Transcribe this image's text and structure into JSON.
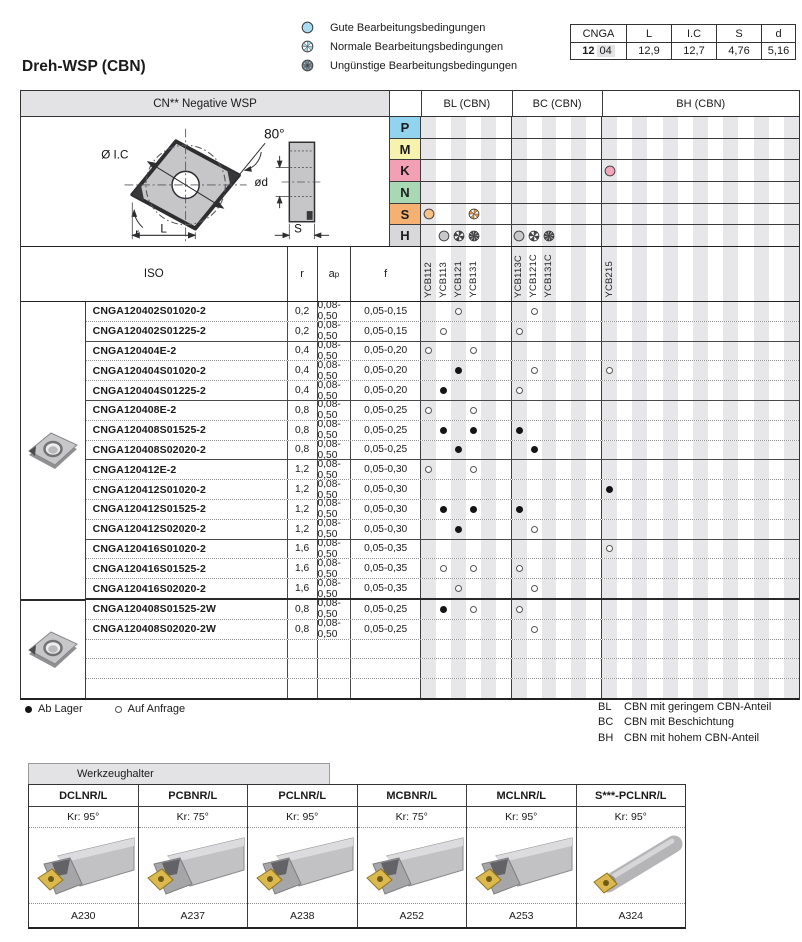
{
  "title": "Dreh-WSP (CBN)",
  "legend": {
    "items": [
      {
        "sym": "gute",
        "color": "#a7dcf2",
        "label": "Gute Bearbeitungsbedingungen"
      },
      {
        "sym": "normale",
        "color": "#9fd3ec",
        "label": "Normale Bearbeitungsbedingungen"
      },
      {
        "sym": "unguenstige",
        "color": "#5f7a8a",
        "label": "Ungünstige Bearbeitungsbedingungen"
      }
    ]
  },
  "dim_table": {
    "headers": [
      "CNGA",
      "L",
      "I.C",
      "S",
      "d"
    ],
    "code_bold": "12",
    "code_shaded": "04",
    "values": [
      "12,9",
      "12,7",
      "4,76",
      "5,16"
    ]
  },
  "main_table": {
    "header_left": "CN** Negative WSP",
    "group_headers": [
      "BL (CBN)",
      "BC (CBN)",
      "BH (CBN)"
    ],
    "columns": {
      "iso": "ISO",
      "r": "r",
      "ap_base": "a",
      "ap_sub": "p",
      "f": "f"
    },
    "drawing": {
      "angle": "80°",
      "ic": "Ø I.C",
      "d": "ød",
      "r": "r",
      "l": "L",
      "s": "S"
    },
    "iso_rows": [
      {
        "letter": "P",
        "color": "#92d4ef",
        "marks": []
      },
      {
        "letter": "M",
        "color": "#f7f2ae",
        "marks": []
      },
      {
        "letter": "K",
        "color": "#f4a0b4",
        "marks": [
          {
            "col": 12,
            "sym": "gute",
            "color": "#f2a8ba"
          }
        ]
      },
      {
        "letter": "N",
        "color": "#a9d8b4",
        "marks": []
      },
      {
        "letter": "S",
        "color": "#f5b171",
        "marks": [
          {
            "col": 0,
            "sym": "gute",
            "color": "#f7c187"
          },
          {
            "col": 3,
            "sym": "normale",
            "color": "#e8913c"
          }
        ]
      },
      {
        "letter": "H",
        "color": "#d8d8da",
        "marks": [
          {
            "col": 1,
            "sym": "gute",
            "color": "#c8c8ca"
          },
          {
            "col": 2,
            "sym": "normale",
            "color": "#47474b"
          },
          {
            "col": 3,
            "sym": "unguenstige",
            "color": "#47474b"
          },
          {
            "col": 6,
            "sym": "gute",
            "color": "#c8c8ca"
          },
          {
            "col": 7,
            "sym": "normale",
            "color": "#47474b"
          },
          {
            "col": 8,
            "sym": "unguenstige",
            "color": "#47474b"
          }
        ]
      }
    ],
    "grade_labels": [
      {
        "col": 0,
        "label": "YCB112"
      },
      {
        "col": 1,
        "label": "YCB113"
      },
      {
        "col": 2,
        "label": "YCB121"
      },
      {
        "col": 3,
        "label": "YCB131"
      },
      {
        "col": 6,
        "label": "YCB113C"
      },
      {
        "col": 7,
        "label": "YCB121C"
      },
      {
        "col": 8,
        "label": "YCB131C"
      },
      {
        "col": 12,
        "label": "YCB215"
      }
    ],
    "rows": [
      {
        "name": "CNGA120402S01020-2",
        "r": "0,2",
        "ap": "0,08-0,50",
        "f": "0,05-0,15",
        "sep": "first",
        "marks": [
          {
            "col": 2,
            "sym": "open"
          },
          {
            "col": 7,
            "sym": "open"
          }
        ]
      },
      {
        "name": "CNGA120402S01225-2",
        "r": "0,2",
        "ap": "0,08-0,50",
        "f": "0,05-0,15",
        "sep": "dotted",
        "marks": [
          {
            "col": 1,
            "sym": "open"
          },
          {
            "col": 6,
            "sym": "open"
          }
        ]
      },
      {
        "name": "CNGA120404E-2",
        "r": "0,4",
        "ap": "0,08-0,50",
        "f": "0,05-0,20",
        "sep": "solid",
        "marks": [
          {
            "col": 0,
            "sym": "open"
          },
          {
            "col": 3,
            "sym": "open"
          }
        ]
      },
      {
        "name": "CNGA120404S01020-2",
        "r": "0,4",
        "ap": "0,08-0,50",
        "f": "0,05-0,20",
        "sep": "dotted",
        "marks": [
          {
            "col": 2,
            "sym": "filled"
          },
          {
            "col": 7,
            "sym": "open"
          },
          {
            "col": 12,
            "sym": "open"
          }
        ]
      },
      {
        "name": "CNGA120404S01225-2",
        "r": "0,4",
        "ap": "0,08-0,50",
        "f": "0,05-0,20",
        "sep": "dotted",
        "marks": [
          {
            "col": 1,
            "sym": "filled"
          },
          {
            "col": 6,
            "sym": "open"
          }
        ]
      },
      {
        "name": "CNGA120408E-2",
        "r": "0,8",
        "ap": "0,08-0,50",
        "f": "0,05-0,25",
        "sep": "solid",
        "marks": [
          {
            "col": 0,
            "sym": "open"
          },
          {
            "col": 3,
            "sym": "open"
          }
        ]
      },
      {
        "name": "CNGA120408S01525-2",
        "r": "0,8",
        "ap": "0,08-0,50",
        "f": "0,05-0,25",
        "sep": "dotted",
        "marks": [
          {
            "col": 1,
            "sym": "filled"
          },
          {
            "col": 3,
            "sym": "filled"
          },
          {
            "col": 6,
            "sym": "filled"
          }
        ]
      },
      {
        "name": "CNGA120408S02020-2",
        "r": "0,8",
        "ap": "0,08-0,50",
        "f": "0,05-0,25",
        "sep": "dotted",
        "marks": [
          {
            "col": 2,
            "sym": "filled"
          },
          {
            "col": 7,
            "sym": "filled"
          }
        ]
      },
      {
        "name": "CNGA120412E-2",
        "r": "1,2",
        "ap": "0,08-0,50",
        "f": "0,05-0,30",
        "sep": "solid",
        "marks": [
          {
            "col": 0,
            "sym": "open"
          },
          {
            "col": 3,
            "sym": "open"
          }
        ]
      },
      {
        "name": "CNGA120412S01020-2",
        "r": "1,2",
        "ap": "0,08-0,50",
        "f": "0,05-0,30",
        "sep": "dotted",
        "marks": [
          {
            "col": 12,
            "sym": "filled"
          }
        ]
      },
      {
        "name": "CNGA120412S01525-2",
        "r": "1,2",
        "ap": "0,08-0,50",
        "f": "0,05-0,30",
        "sep": "dotted",
        "marks": [
          {
            "col": 1,
            "sym": "filled"
          },
          {
            "col": 3,
            "sym": "filled"
          },
          {
            "col": 6,
            "sym": "filled"
          }
        ]
      },
      {
        "name": "CNGA120412S02020-2",
        "r": "1,2",
        "ap": "0,08-0,50",
        "f": "0,05-0,30",
        "sep": "dotted",
        "marks": [
          {
            "col": 2,
            "sym": "filled"
          },
          {
            "col": 7,
            "sym": "open"
          }
        ]
      },
      {
        "name": "CNGA120416S01020-2",
        "r": "1,6",
        "ap": "0,08-0,50",
        "f": "0,05-0,35",
        "sep": "solid",
        "marks": [
          {
            "col": 12,
            "sym": "open"
          }
        ]
      },
      {
        "name": "CNGA120416S01525-2",
        "r": "1,6",
        "ap": "0,08-0,50",
        "f": "0,05-0,35",
        "sep": "dotted",
        "marks": [
          {
            "col": 1,
            "sym": "open"
          },
          {
            "col": 3,
            "sym": "open"
          },
          {
            "col": 6,
            "sym": "open"
          }
        ]
      },
      {
        "name": "CNGA120416S02020-2",
        "r": "1,6",
        "ap": "0,08-0,50",
        "f": "0,05-0,35",
        "sep": "dotted",
        "marks": [
          {
            "col": 2,
            "sym": "open"
          },
          {
            "col": 7,
            "sym": "open"
          }
        ]
      },
      {
        "name": "CNGA120408S01525-2W",
        "r": "0,8",
        "ap": "0,08-0,50",
        "f": "0,05-0,25",
        "sep": "thick",
        "marks": [
          {
            "col": 1,
            "sym": "filled"
          },
          {
            "col": 3,
            "sym": "open"
          },
          {
            "col": 6,
            "sym": "open"
          }
        ]
      },
      {
        "name": "CNGA120408S02020-2W",
        "r": "0,8",
        "ap": "0,08-0,50",
        "f": "0,05-0,25",
        "sep": "dotted",
        "marks": [
          {
            "col": 7,
            "sym": "open"
          }
        ]
      },
      {
        "name": "",
        "r": "",
        "ap": "",
        "f": "",
        "sep": "dotted",
        "marks": []
      },
      {
        "name": "",
        "r": "",
        "ap": "",
        "f": "",
        "sep": "dotted",
        "marks": []
      },
      {
        "name": "",
        "r": "",
        "ap": "",
        "f": "",
        "sep": "dotted",
        "marks": []
      }
    ]
  },
  "stock_legend": {
    "filled": "Ab Lager",
    "open": "Auf Anfrage"
  },
  "cbn_notes": [
    {
      "code": "BL",
      "text": "CBN mit geringem CBN-Anteil"
    },
    {
      "code": "BC",
      "text": "CBN mit Beschichtung"
    },
    {
      "code": "BH",
      "text": "CBN mit hohem CBN-Anteil"
    }
  ],
  "holders": {
    "tab": "Werkzeughalter",
    "items": [
      {
        "model": "DCLNR/L",
        "kr": "Kr: 95°",
        "page": "A230",
        "style": "square"
      },
      {
        "model": "PCBNR/L",
        "kr": "Kr: 75°",
        "page": "A237",
        "style": "square"
      },
      {
        "model": "PCLNR/L",
        "kr": "Kr: 95°",
        "page": "A238",
        "style": "square"
      },
      {
        "model": "MCBNR/L",
        "kr": "Kr: 75°",
        "page": "A252",
        "style": "square"
      },
      {
        "model": "MCLNR/L",
        "kr": "Kr: 95°",
        "page": "A253",
        "style": "square"
      },
      {
        "model": "S***-PCLNR/L",
        "kr": "Kr: 95°",
        "page": "A324",
        "style": "round"
      }
    ]
  }
}
